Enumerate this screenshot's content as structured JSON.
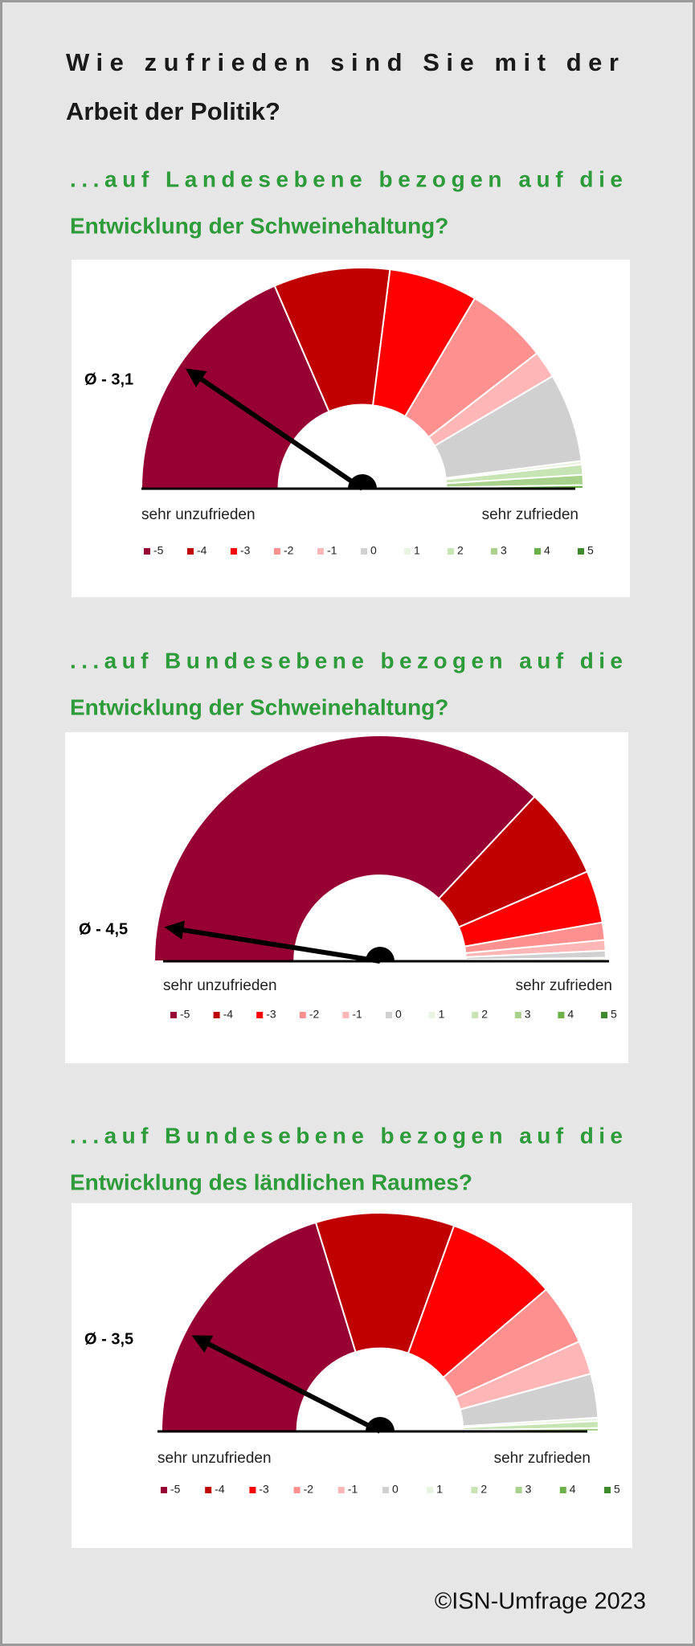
{
  "title": [
    "Wie zufrieden sind Sie mit der",
    "Arbeit der Politik?"
  ],
  "footer": "©ISN-Umfrage 2023",
  "chart_data": [
    {
      "type": "gauge",
      "title": [
        "...auf Landesebene bezogen auf die",
        "Entwicklung der Schweinehaltung?"
      ],
      "categories": [
        "-5",
        "-4",
        "-3",
        "-2",
        "-1",
        "0",
        "1",
        "2",
        "3",
        "4",
        "5"
      ],
      "colors": [
        "#960032",
        "#c00000",
        "#ff0000",
        "#ff9090",
        "#ffb6b6",
        "#d0d0d0",
        "#e8f4e0",
        "#c6e4b4",
        "#a8d28c",
        "#6cb04a",
        "#3e8a2c"
      ],
      "values": [
        37,
        17,
        13,
        12,
        4,
        13,
        0.5,
        1.5,
        1.5,
        0.5,
        0
      ],
      "xlim": [
        -5,
        5
      ],
      "mean": -3.1,
      "mean_label": "Ø - 3,1",
      "left_label": "sehr unzufrieden",
      "right_label": "sehr zufrieden"
    },
    {
      "type": "gauge",
      "title": [
        "...auf Bundesebene bezogen auf die",
        "Entwicklung der Schweinehaltung?"
      ],
      "categories": [
        "-5",
        "-4",
        "-3",
        "-2",
        "-1",
        "0",
        "1",
        "2",
        "3",
        "4",
        "5"
      ],
      "colors": [
        "#960032",
        "#c00000",
        "#ff0000",
        "#ff9090",
        "#ffb6b6",
        "#d0d0d0",
        "#e8f4e0",
        "#c6e4b4",
        "#a8d28c",
        "#6cb04a",
        "#3e8a2c"
      ],
      "values": [
        74,
        13,
        7.5,
        2.5,
        1.5,
        1,
        0.5,
        0,
        0,
        0,
        0
      ],
      "xlim": [
        -5,
        5
      ],
      "mean": -4.5,
      "mean_label": "Ø - 4,5",
      "left_label": "sehr unzufrieden",
      "right_label": "sehr zufrieden"
    },
    {
      "type": "gauge",
      "title": [
        "...auf Bundesebene bezogen auf die",
        "Entwicklung des ländlichen Raumes?"
      ],
      "categories": [
        "-5",
        "-4",
        "-3",
        "-2",
        "-1",
        "0",
        "1",
        "2",
        "3",
        "4",
        "5"
      ],
      "colors": [
        "#960032",
        "#c00000",
        "#ff0000",
        "#ff9090",
        "#ffb6b6",
        "#d0d0d0",
        "#e8f4e0",
        "#c6e4b4",
        "#a8d28c",
        "#6cb04a",
        "#3e8a2c"
      ],
      "values": [
        40.5,
        20.5,
        16.5,
        9,
        5,
        6.5,
        0.5,
        1,
        0.5,
        0,
        0
      ],
      "xlim": [
        -5,
        5
      ],
      "mean": -3.5,
      "mean_label": "Ø - 3,5",
      "left_label": "sehr unzufrieden",
      "right_label": "sehr zufrieden"
    }
  ]
}
